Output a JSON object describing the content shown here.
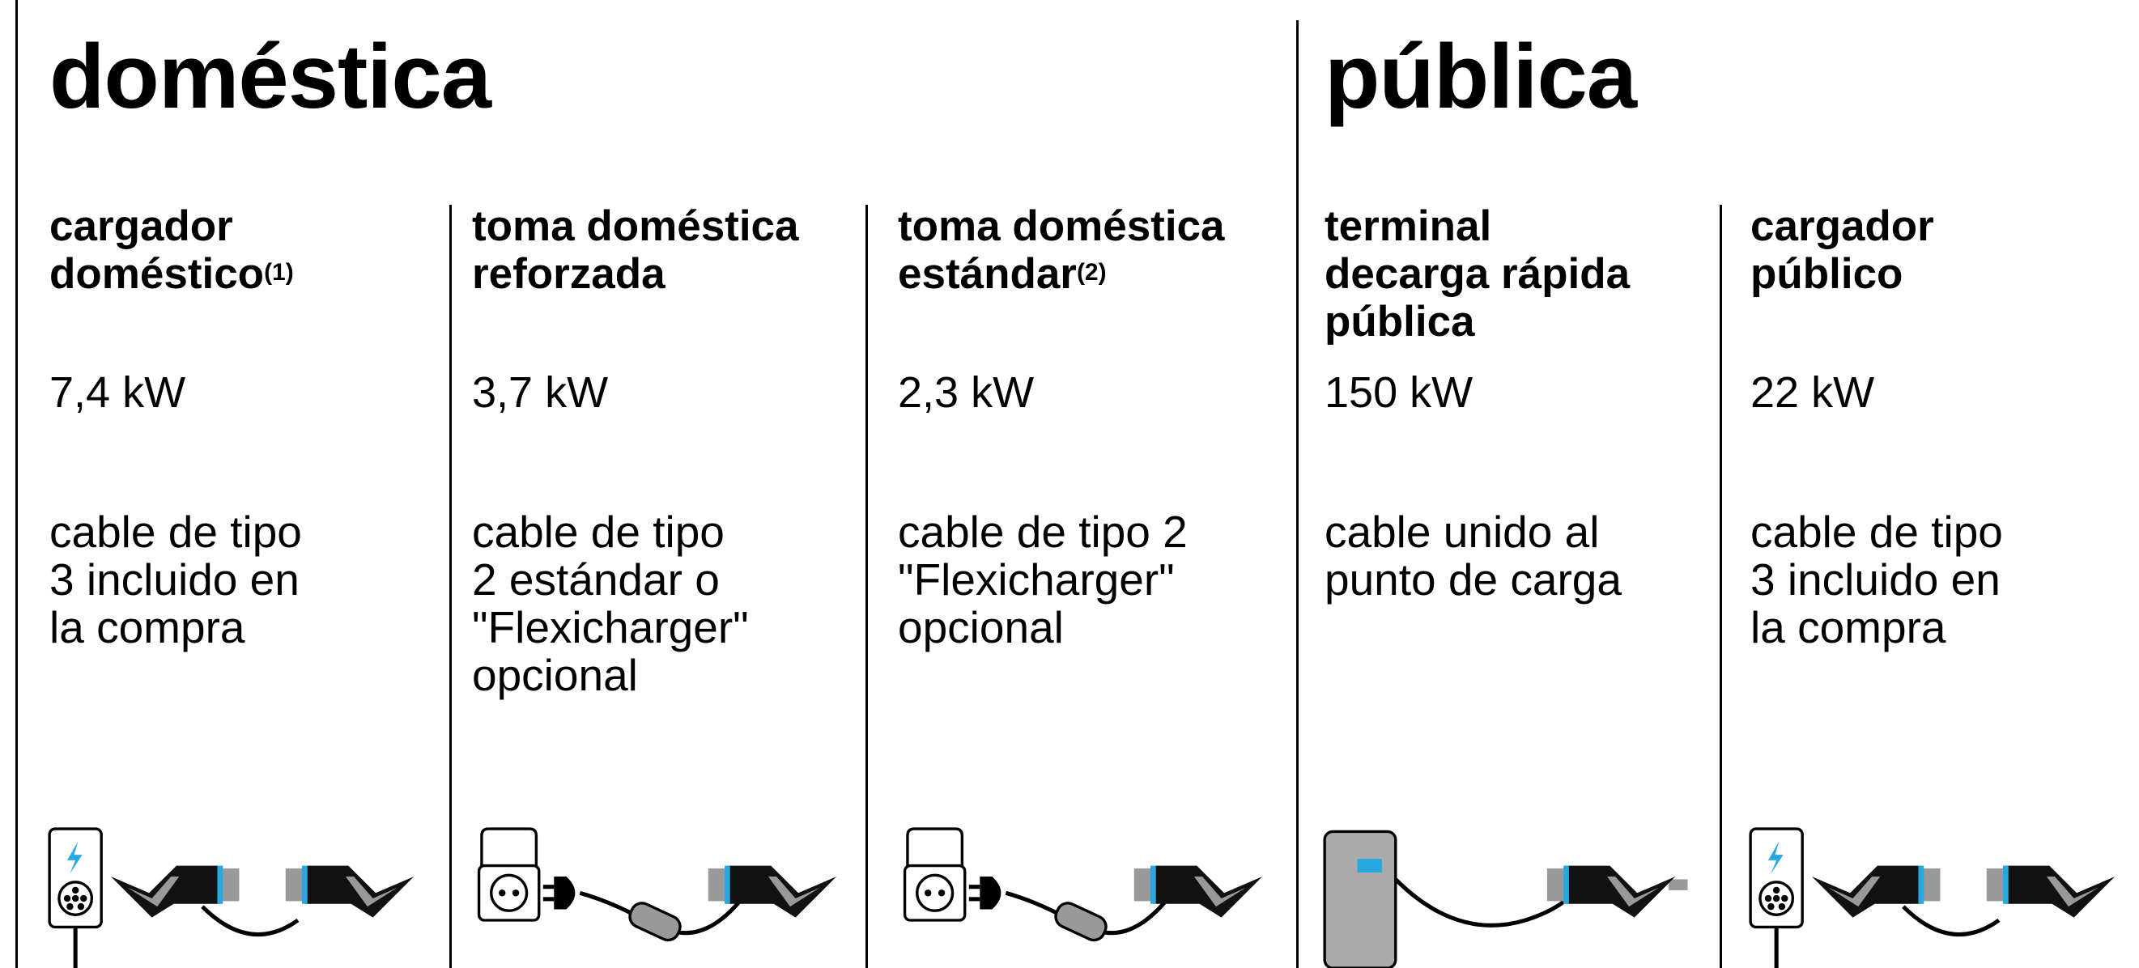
{
  "sections": [
    {
      "title": "doméstica",
      "items": [
        {
          "name": [
            "cargador",
            "doméstico"
          ],
          "note": "(1)",
          "power": "7,4 kW",
          "cable": [
            "cable de tipo",
            "3 incluido en",
            "la compra"
          ]
        },
        {
          "name": [
            "toma doméstica",
            "reforzada"
          ],
          "power": "3,7 kW",
          "cable": [
            "cable de tipo",
            "2 estándar o",
            "\"Flexicharger\"",
            "opcional"
          ]
        },
        {
          "name": [
            "toma doméstica",
            "estándar"
          ],
          "note": "(2)",
          "power": "2,3 kW",
          "cable": [
            "cable de tipo 2",
            "\"Flexicharger\"",
            "opcional"
          ]
        }
      ]
    },
    {
      "title": "pública",
      "items": [
        {
          "name": [
            "terminal",
            "decarga rápida",
            "pública"
          ],
          "power": "150 kW",
          "cable": [
            "cable unido al",
            "punto de carga"
          ]
        },
        {
          "name": [
            "cargador",
            "público"
          ],
          "power": "22 kW",
          "cable": [
            "cable de tipo",
            "3 incluido en",
            "la compra"
          ]
        }
      ]
    }
  ]
}
